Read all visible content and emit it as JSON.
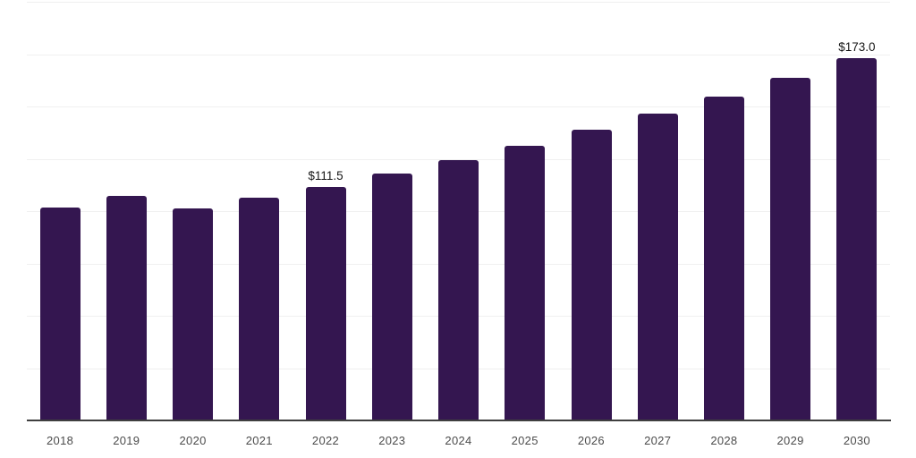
{
  "chart_data": {
    "type": "bar",
    "title": "",
    "xlabel": "",
    "ylabel": "",
    "categories": [
      "2018",
      "2019",
      "2020",
      "2021",
      "2022",
      "2023",
      "2024",
      "2025",
      "2026",
      "2027",
      "2028",
      "2029",
      "2030"
    ],
    "values": [
      101.6,
      107.2,
      101.4,
      106.5,
      111.5,
      118.0,
      124.4,
      131.4,
      139.0,
      146.7,
      154.7,
      163.6,
      173.0
    ],
    "point_labels": {
      "2022": "$111.5",
      "2030": "$173.0"
    },
    "ylim": [
      0,
      200
    ],
    "grid_step": 25,
    "grid": true,
    "legend": false,
    "colors": {
      "bar": "#341650",
      "gridline": "#f0f0f0",
      "axis_line": "#3f3f3f",
      "tick_label": "#4c4c4c",
      "value_label": "#161616",
      "background": "#ffffff"
    }
  }
}
